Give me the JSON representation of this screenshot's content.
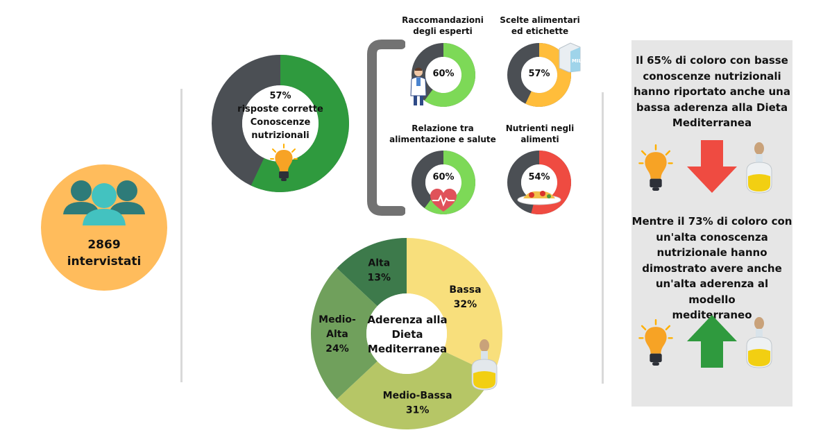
{
  "people_card": {
    "count": "2869",
    "label": "intervistati",
    "icon": "people-icon"
  },
  "knowledge_donut": {
    "line1": "57%",
    "line2": "risposte corrette",
    "line3": "Conoscenze",
    "line4": "nutrizionali",
    "value": 57,
    "icon": "lightbulb-icon"
  },
  "small_donuts": [
    {
      "title_1": "Raccomandazioni",
      "title_2": "degli esperti",
      "value_label": "60%",
      "value": 60,
      "color": "#7dd957",
      "icon": "doctor-icon"
    },
    {
      "title_1": "Scelte alimentari",
      "title_2": "ed etichette",
      "value_label": "57%",
      "value": 57,
      "color": "#ffbd3b",
      "icon": "milk-carton-icon"
    },
    {
      "title_1": "Relazione tra",
      "title_2": "alimentazione e salute",
      "value_label": "60%",
      "value": 60,
      "color": "#7dd957",
      "icon": "heart-icon"
    },
    {
      "title_1": "Nutrienti negli",
      "title_2": "alimenti",
      "value_label": "54%",
      "value": 54,
      "color": "#ef4b41",
      "icon": "pasta-plate-icon"
    }
  ],
  "chart_data": {
    "type": "pie",
    "title": "Aderenza alla Dieta Mediterranea",
    "title_lines": [
      "Aderenza alla",
      "Dieta",
      "Mediterranea"
    ],
    "slices": [
      {
        "name": "Bassa",
        "label_lines": [
          "Bassa"
        ],
        "value": 32,
        "value_label": "32%",
        "color": "#f8df7c"
      },
      {
        "name": "Medio-Bassa",
        "label_lines": [
          "Medio-Bassa"
        ],
        "value": 31,
        "value_label": "31%",
        "color": "#b6c666"
      },
      {
        "name": "Medio-Alta",
        "label_lines": [
          "Medio-",
          "Alta"
        ],
        "value": 24,
        "value_label": "24%",
        "color": "#70a05c"
      },
      {
        "name": "Alta",
        "label_lines": [
          "Alta"
        ],
        "value": 13,
        "value_label": "13%",
        "color": "#3d7a4b"
      }
    ]
  },
  "colors": {
    "dark_gray": "#4b4f54",
    "green": "#2f9a3e",
    "panel_bg": "#e6e6e6",
    "orange_circle": "#ffbc5c",
    "teal": "#2e7b79"
  },
  "panel": {
    "text1": [
      "Il 65% di coloro con basse",
      "conoscenze nutrizionali",
      "hanno riportato anche una",
      "bassa aderenza alla Dieta",
      "Mediterranea"
    ],
    "text2": [
      "Mentre il 73% di coloro con",
      "un'alta conoscenza",
      "nutrizionale hanno",
      "dimostrato avere anche",
      "un'alta aderenza al modello",
      "mediterraneo"
    ],
    "icons_row1": [
      "lightbulb-icon",
      "arrow-down-icon",
      "olive-oil-bottle-icon"
    ],
    "icons_row2": [
      "lightbulb-icon",
      "arrow-up-icon",
      "olive-oil-bottle-icon"
    ]
  }
}
